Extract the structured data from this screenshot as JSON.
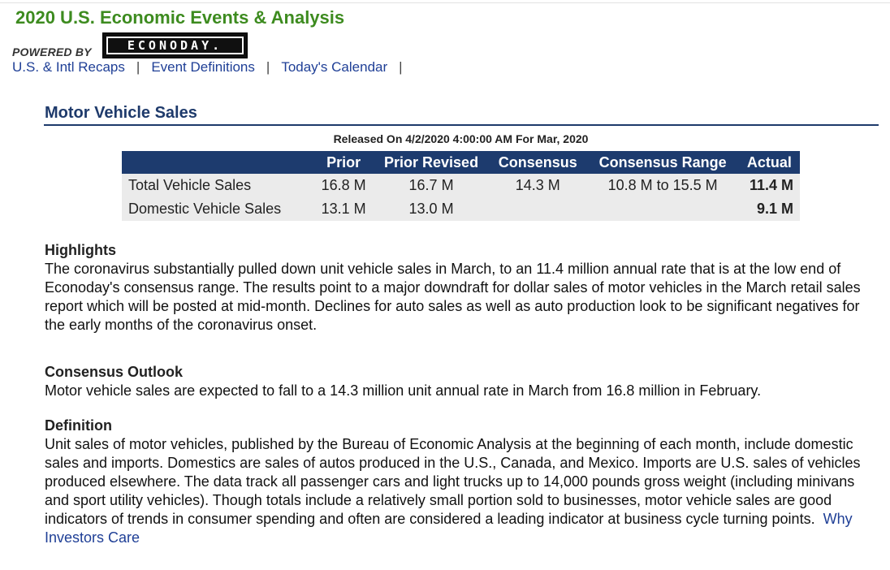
{
  "site": {
    "title": "2020 U.S. Economic Events & Analysis",
    "powered_by": "POWERED BY",
    "logo_text": "ECONODAY."
  },
  "nav": {
    "items": [
      "U.S. & Intl Recaps",
      "Event Definitions",
      "Today's Calendar"
    ],
    "separator": "|"
  },
  "event": {
    "title": "Motor Vehicle Sales",
    "released": "Released On 4/2/2020 4:00:00 AM For Mar, 2020"
  },
  "table": {
    "headers": [
      "",
      "Prior",
      "Prior Revised",
      "Consensus",
      "Consensus Range",
      "Actual"
    ],
    "rows": [
      {
        "label": "Total Vehicle Sales",
        "prior": "16.8 M",
        "prior_revised": "16.7 M",
        "consensus": "14.3 M",
        "consensus_range": "10.8 M to 15.5 M",
        "actual": "11.4 M"
      },
      {
        "label": "Domestic Vehicle Sales",
        "prior": "13.1 M",
        "prior_revised": "13.0 M",
        "consensus": "",
        "consensus_range": "",
        "actual": "9.1 M"
      }
    ]
  },
  "highlights": {
    "heading": "Highlights",
    "text": "The coronavirus substantially pulled down unit vehicle sales in March, to an 11.4 million annual rate that is at the low end of Econoday's consensus range. The results point to a major downdraft for dollar sales of motor vehicles in the March retail sales report which will be posted at mid-month. Declines for auto sales as well as auto production look to be significant negatives for the early months of the coronavirus onset."
  },
  "outlook": {
    "heading": "Consensus Outlook",
    "text": "Motor vehicle sales are expected to fall to a 14.3 million unit annual rate in March from 16.8 million in February."
  },
  "definition": {
    "heading": "Definition",
    "text": "Unit sales of motor vehicles, published by the Bureau of Economic Analysis at the beginning of each month, include domestic sales and imports. Domestics are sales of autos produced in the U.S., Canada, and Mexico. Imports are U.S. sales of vehicles produced elsewhere. The data track all passenger cars and light trucks up to 14,000 pounds gross weight (including minivans and sport utility vehicles). Though totals include a relatively small portion sold to businesses, motor vehicle sales are good indicators of trends in consumer spending and often are considered a leading indicator at business cycle turning points.",
    "link": "Why Investors Care"
  },
  "colors": {
    "title_green": "#3d8b1f",
    "navy": "#1d3b6e",
    "link_blue": "#1f3f96",
    "row_gray": "#ebebeb"
  }
}
